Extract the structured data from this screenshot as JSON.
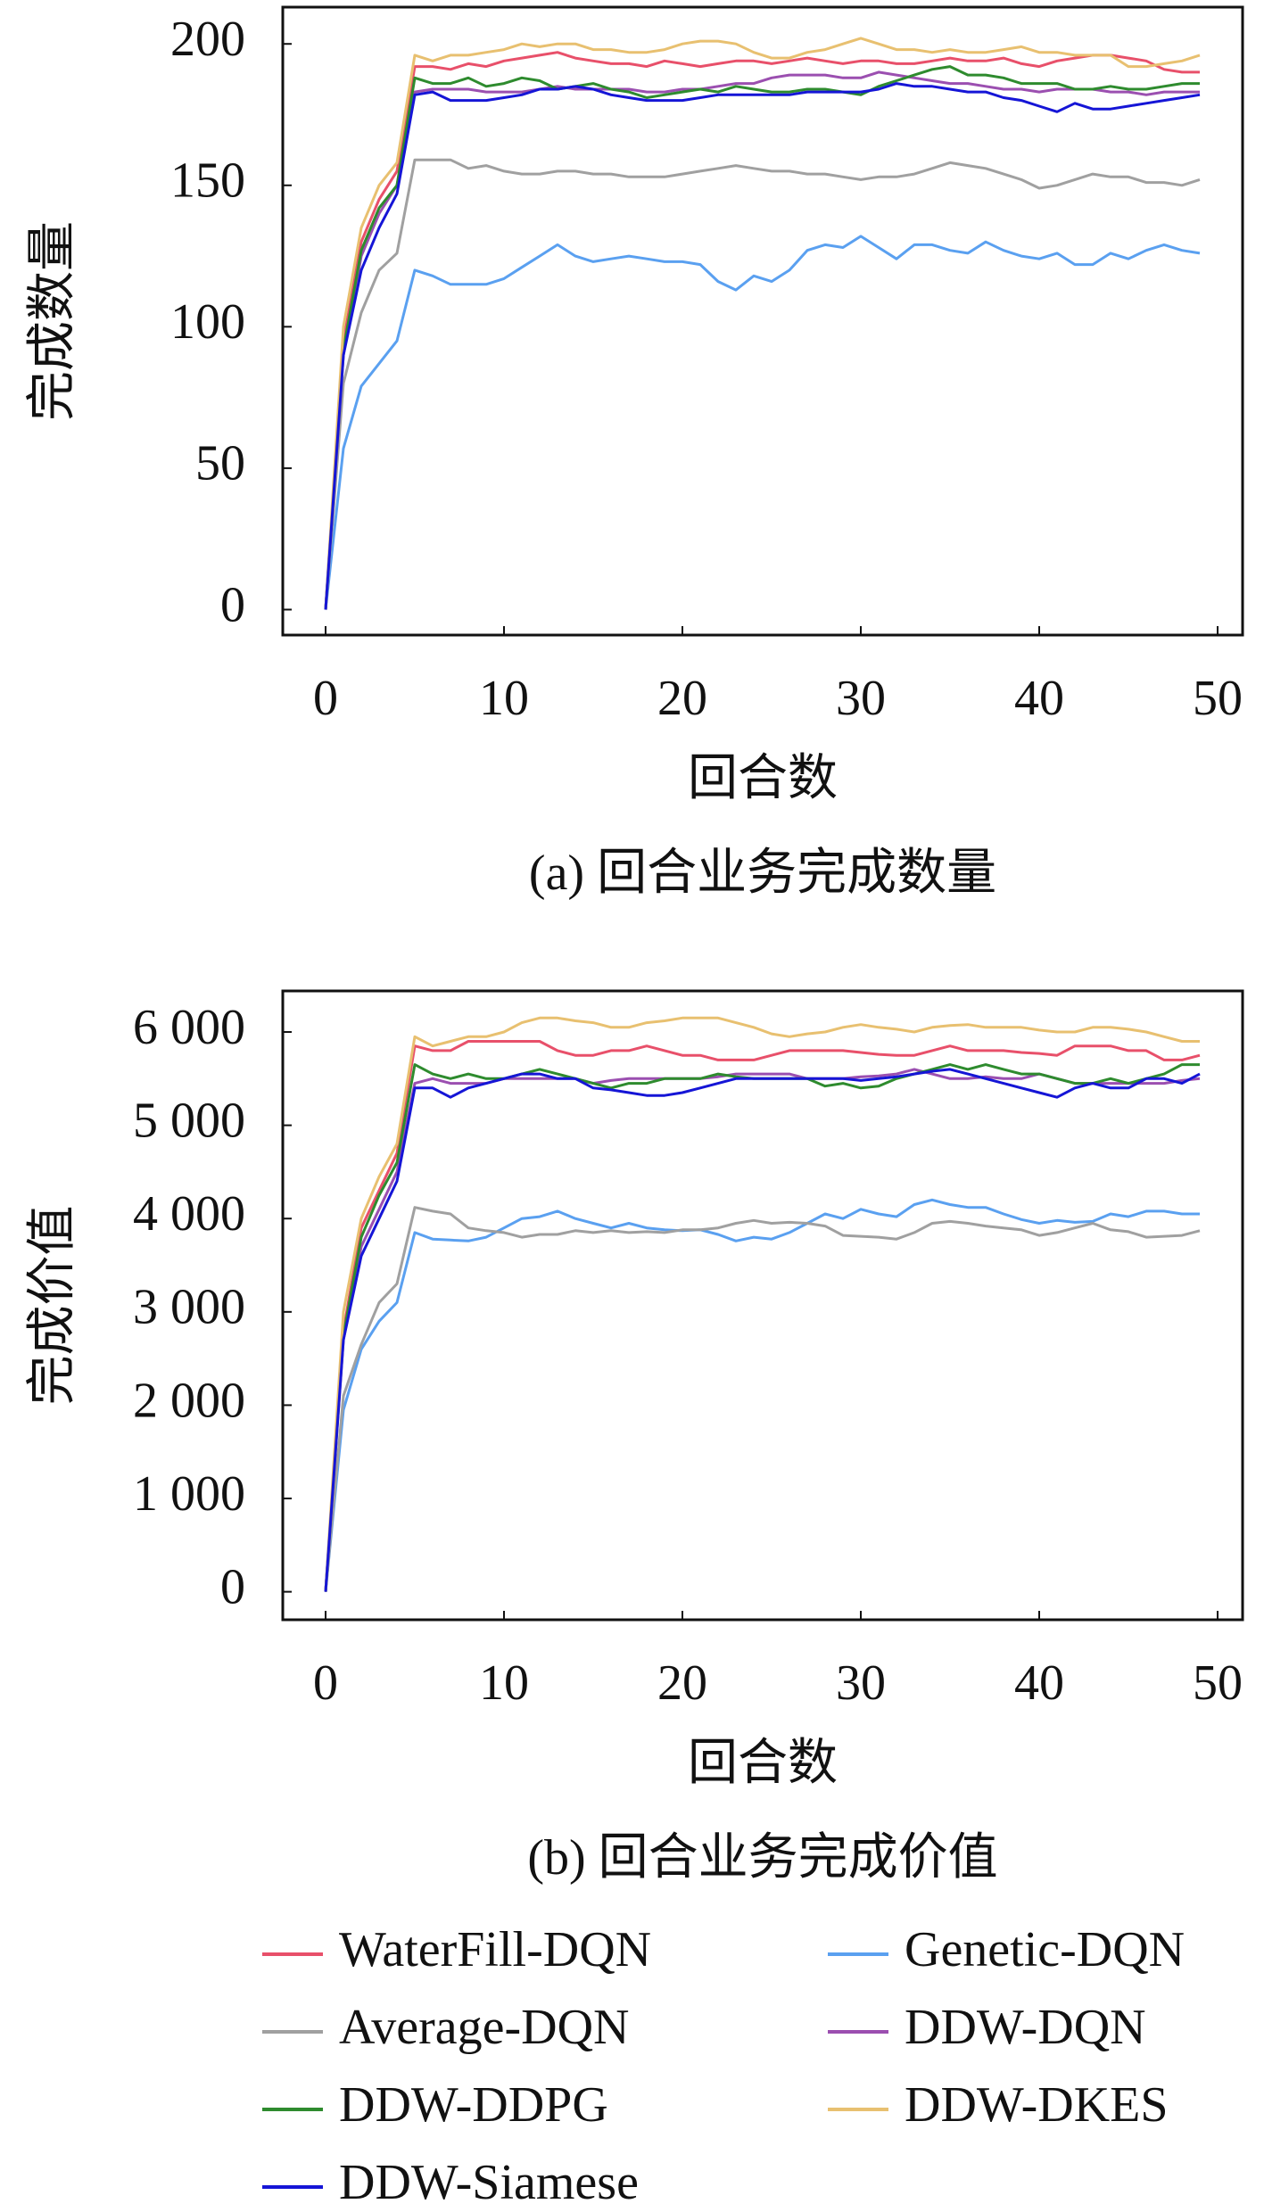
{
  "chart_data": [
    {
      "type": "line",
      "caption": "(a) 回合业务完成数量",
      "x_label": "回合数",
      "y_label": "完成数量",
      "x": [
        0,
        1,
        2,
        3,
        4,
        5,
        6,
        7,
        8,
        9,
        10,
        11,
        12,
        13,
        14,
        15,
        16,
        17,
        18,
        19,
        20,
        21,
        22,
        23,
        24,
        25,
        26,
        27,
        28,
        29,
        30,
        31,
        32,
        33,
        34,
        35,
        36,
        37,
        38,
        39,
        40,
        41,
        42,
        43,
        44,
        45,
        46,
        47,
        48,
        49
      ],
      "xlim": [
        -2.4,
        51.4
      ],
      "xticks": [
        0,
        10,
        20,
        30,
        40,
        50
      ],
      "ylim": [
        -9,
        213
      ],
      "yticks": [
        0,
        50,
        100,
        150,
        200
      ],
      "series": [
        {
          "name": "WaterFill-DQN",
          "color": "#e8506a",
          "values": [
            0,
            95,
            130,
            145,
            155,
            192,
            192,
            191,
            193,
            192,
            194,
            195,
            196,
            197,
            195,
            194,
            193,
            193,
            192,
            194,
            193,
            192,
            193,
            194,
            194,
            193,
            194,
            195,
            194,
            193,
            194,
            194,
            193,
            193,
            194,
            195,
            194,
            194,
            195,
            193,
            192,
            194,
            195,
            196,
            196,
            195,
            194,
            191,
            190,
            190
          ]
        },
        {
          "name": "Genetic-DQN",
          "color": "#5aa0f0",
          "values": [
            0,
            57,
            79,
            87,
            95,
            120,
            118,
            115,
            115,
            115,
            117,
            121,
            125,
            129,
            125,
            123,
            124,
            125,
            124,
            123,
            123,
            122,
            116,
            113,
            118,
            116,
            120,
            127,
            129,
            128,
            132,
            128,
            124,
            129,
            129,
            127,
            126,
            130,
            127,
            125,
            124,
            126,
            122,
            122,
            126,
            124,
            127,
            129,
            127,
            126
          ]
        },
        {
          "name": "Average-DQN",
          "color": "#a0a0a0",
          "values": [
            0,
            80,
            105,
            120,
            126,
            159,
            159,
            159,
            156,
            157,
            155,
            154,
            154,
            155,
            155,
            154,
            154,
            153,
            153,
            153,
            154,
            155,
            156,
            157,
            156,
            155,
            155,
            154,
            154,
            153,
            152,
            153,
            153,
            154,
            156,
            158,
            157,
            156,
            154,
            152,
            149,
            150,
            152,
            154,
            153,
            153,
            151,
            151,
            150,
            152
          ]
        },
        {
          "name": "DDW-DQN",
          "color": "#9b4fb0",
          "values": [
            0,
            90,
            125,
            140,
            150,
            183,
            184,
            184,
            184,
            183,
            183,
            183,
            184,
            185,
            184,
            184,
            184,
            184,
            183,
            183,
            184,
            184,
            185,
            186,
            186,
            188,
            189,
            189,
            189,
            188,
            188,
            190,
            189,
            188,
            187,
            186,
            186,
            185,
            184,
            184,
            183,
            184,
            184,
            184,
            183,
            183,
            182,
            183,
            183,
            183
          ]
        },
        {
          "name": "DDW-DDPG",
          "color": "#2e8b2e",
          "values": [
            0,
            92,
            127,
            142,
            150,
            188,
            186,
            186,
            188,
            185,
            186,
            188,
            187,
            184,
            185,
            186,
            184,
            183,
            181,
            182,
            183,
            184,
            183,
            185,
            184,
            183,
            183,
            184,
            184,
            183,
            182,
            185,
            187,
            189,
            191,
            192,
            189,
            189,
            188,
            186,
            186,
            186,
            184,
            184,
            185,
            184,
            184,
            185,
            186,
            186
          ]
        },
        {
          "name": "DDW-DKES",
          "color": "#e8c070",
          "values": [
            0,
            100,
            135,
            150,
            158,
            196,
            194,
            196,
            196,
            197,
            198,
            200,
            199,
            200,
            200,
            198,
            198,
            197,
            197,
            198,
            200,
            201,
            201,
            200,
            197,
            195,
            195,
            197,
            198,
            200,
            202,
            200,
            198,
            198,
            197,
            198,
            197,
            197,
            198,
            199,
            197,
            197,
            196,
            196,
            196,
            192,
            192,
            193,
            194,
            196
          ]
        },
        {
          "name": "DDW-Siamese",
          "color": "#1515d6",
          "values": [
            0,
            90,
            120,
            135,
            147,
            182,
            183,
            180,
            180,
            180,
            181,
            182,
            184,
            184,
            185,
            184,
            182,
            181,
            180,
            180,
            180,
            181,
            182,
            182,
            182,
            182,
            182,
            183,
            183,
            183,
            183,
            184,
            186,
            185,
            185,
            184,
            183,
            183,
            181,
            180,
            178,
            176,
            179,
            177,
            177,
            178,
            179,
            180,
            181,
            182
          ]
        }
      ]
    },
    {
      "type": "line",
      "caption": "(b) 回合业务完成价值",
      "x_label": "回合数",
      "y_label": "完成价值",
      "x": [
        0,
        1,
        2,
        3,
        4,
        5,
        6,
        7,
        8,
        9,
        10,
        11,
        12,
        13,
        14,
        15,
        16,
        17,
        18,
        19,
        20,
        21,
        22,
        23,
        24,
        25,
        26,
        27,
        28,
        29,
        30,
        31,
        32,
        33,
        34,
        35,
        36,
        37,
        38,
        39,
        40,
        41,
        42,
        43,
        44,
        45,
        46,
        47,
        48,
        49
      ],
      "xlim": [
        -2.4,
        51.4
      ],
      "xticks": [
        0,
        10,
        20,
        30,
        40,
        50
      ],
      "ylim": [
        -300,
        6440
      ],
      "yticks": [
        0,
        {
          "value": 1000,
          "label": "1 000"
        },
        {
          "value": 2000,
          "label": "2 000"
        },
        {
          "value": 3000,
          "label": "3 000"
        },
        {
          "value": 4000,
          "label": "4 000"
        },
        {
          "value": 5000,
          "label": "5 000"
        },
        {
          "value": 6000,
          "label": "6 000"
        }
      ],
      "series": [
        {
          "values": [
            0,
            2800,
            3900,
            4300,
            4700,
            5850,
            5800,
            5800,
            5900,
            5900,
            5900,
            5900,
            5900,
            5800,
            5750,
            5750,
            5800,
            5800,
            5850,
            5800,
            5750,
            5750,
            5700,
            5700,
            5700,
            5750,
            5800,
            5800,
            5800,
            5800,
            5780,
            5760,
            5750,
            5750,
            5800,
            5850,
            5800,
            5800,
            5800,
            5780,
            5770,
            5750,
            5850,
            5850,
            5850,
            5800,
            5800,
            5700,
            5700,
            5750
          ]
        },
        {
          "values": [
            0,
            1950,
            2600,
            2900,
            3100,
            3850,
            3780,
            3770,
            3760,
            3800,
            3900,
            4000,
            4020,
            4080,
            4000,
            3950,
            3900,
            3950,
            3900,
            3880,
            3870,
            3880,
            3830,
            3760,
            3800,
            3780,
            3850,
            3950,
            4050,
            4000,
            4100,
            4050,
            4020,
            4150,
            4200,
            4150,
            4120,
            4120,
            4050,
            3990,
            3950,
            3980,
            3960,
            3970,
            4050,
            4020,
            4080,
            4080,
            4050,
            4050
          ]
        },
        {
          "values": [
            0,
            2100,
            2650,
            3100,
            3300,
            4120,
            4080,
            4050,
            3900,
            3870,
            3850,
            3800,
            3830,
            3830,
            3870,
            3850,
            3870,
            3850,
            3860,
            3850,
            3880,
            3880,
            3900,
            3950,
            3980,
            3950,
            3960,
            3950,
            3920,
            3820,
            3810,
            3800,
            3780,
            3850,
            3950,
            3970,
            3950,
            3920,
            3900,
            3880,
            3820,
            3850,
            3900,
            3950,
            3880,
            3860,
            3800,
            3810,
            3820,
            3870
          ]
        },
        {
          "values": [
            0,
            2700,
            3700,
            4100,
            4500,
            5450,
            5500,
            5450,
            5450,
            5450,
            5500,
            5500,
            5500,
            5500,
            5500,
            5450,
            5480,
            5500,
            5500,
            5500,
            5500,
            5500,
            5520,
            5550,
            5550,
            5550,
            5550,
            5500,
            5500,
            5500,
            5520,
            5530,
            5550,
            5600,
            5550,
            5500,
            5500,
            5520,
            5500,
            5500,
            5550,
            5500,
            5450,
            5450,
            5450,
            5450,
            5450,
            5450,
            5480,
            5500
          ]
        },
        {
          "values": [
            0,
            2750,
            3800,
            4250,
            4600,
            5650,
            5550,
            5500,
            5550,
            5500,
            5500,
            5550,
            5600,
            5550,
            5500,
            5450,
            5400,
            5450,
            5450,
            5500,
            5500,
            5500,
            5550,
            5520,
            5500,
            5500,
            5500,
            5500,
            5420,
            5450,
            5400,
            5420,
            5500,
            5550,
            5600,
            5650,
            5600,
            5650,
            5600,
            5550,
            5550,
            5500,
            5450,
            5450,
            5500,
            5450,
            5500,
            5550,
            5650,
            5650
          ]
        },
        {
          "values": [
            0,
            3000,
            4000,
            4450,
            4800,
            5950,
            5850,
            5900,
            5950,
            5950,
            6000,
            6100,
            6150,
            6150,
            6120,
            6100,
            6050,
            6050,
            6100,
            6120,
            6150,
            6150,
            6150,
            6100,
            6050,
            5980,
            5950,
            5980,
            6000,
            6050,
            6080,
            6050,
            6030,
            6000,
            6050,
            6070,
            6080,
            6050,
            6050,
            6050,
            6020,
            6000,
            6000,
            6050,
            6050,
            6030,
            6000,
            5950,
            5900,
            5900
          ]
        },
        {
          "values": [
            0,
            2700,
            3600,
            4000,
            4400,
            5400,
            5400,
            5300,
            5400,
            5450,
            5500,
            5550,
            5550,
            5500,
            5500,
            5400,
            5380,
            5350,
            5320,
            5320,
            5350,
            5400,
            5450,
            5500,
            5500,
            5500,
            5500,
            5500,
            5500,
            5500,
            5480,
            5500,
            5520,
            5550,
            5580,
            5600,
            5550,
            5500,
            5450,
            5400,
            5350,
            5300,
            5400,
            5450,
            5400,
            5400,
            5500,
            5500,
            5450,
            5550
          ]
        }
      ]
    }
  ]
}
